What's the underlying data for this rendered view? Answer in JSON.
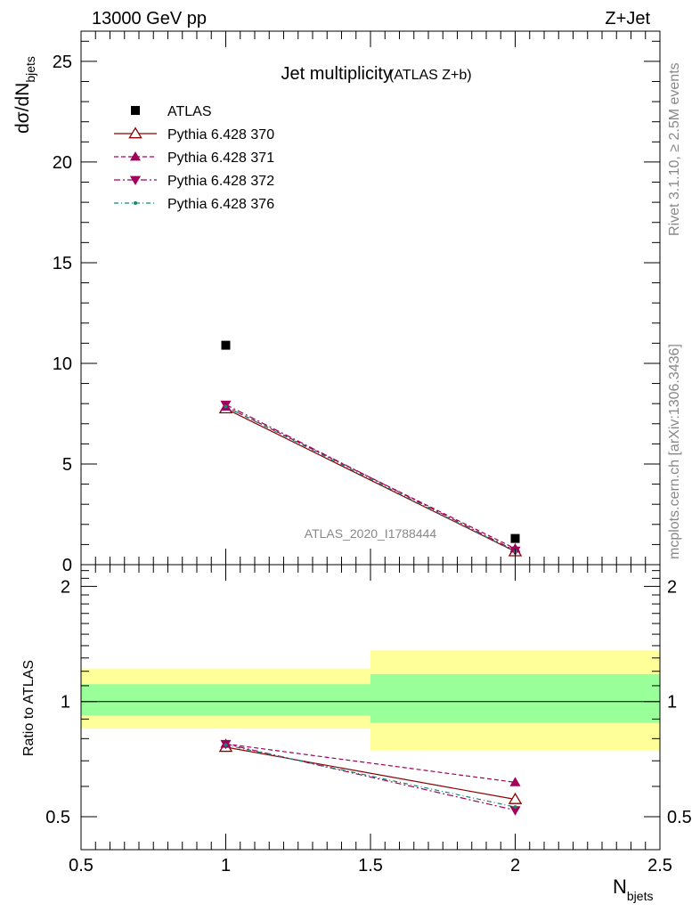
{
  "header": {
    "energy_label": "13000 GeV pp",
    "process_label": "Z+Jet"
  },
  "side_labels": {
    "rivet": "Rivet 3.1.10, ≥ 2.5M events",
    "mcplots": "mcplots.cern.ch [arXiv:1306.3436]"
  },
  "colors": {
    "atlas": "#000000",
    "pythia370": "#8b0000",
    "pythia371": "#a0005a",
    "pythia372": "#a0005a",
    "pythia376": "#0e8a6e",
    "band_outer": "#ffff99",
    "band_inner": "#99ff99"
  },
  "chart_data": [
    {
      "type": "scatter",
      "title": "Jet multiplicity",
      "title_suffix": "(ATLAS Z+b)",
      "watermark": "ATLAS_2020_I1788444",
      "ylabel_main": "dσ/dN",
      "ylabel_sub": "bjets",
      "xlabel_main": "N",
      "xlabel_sub": "bjets",
      "xlim": [
        0.5,
        2.5
      ],
      "ylim": [
        0,
        26.5
      ],
      "yticks": [
        0,
        5,
        10,
        15,
        20,
        25
      ],
      "x": [
        1,
        2
      ],
      "legend_position": "top-left",
      "series": [
        {
          "name": "ATLAS",
          "marker": "square",
          "line": "none",
          "values": [
            10.9,
            1.3
          ]
        },
        {
          "name": "Pythia 6.428 370",
          "marker": "open-triangle-up",
          "line": "solid",
          "values": [
            7.75,
            0.65
          ]
        },
        {
          "name": "Pythia 6.428 371",
          "marker": "filled-triangle-up",
          "line": "dashed",
          "values": [
            7.85,
            0.8
          ]
        },
        {
          "name": "Pythia 6.428 372",
          "marker": "filled-triangle-down",
          "line": "dashdot",
          "values": [
            7.95,
            0.7
          ]
        },
        {
          "name": "Pythia 6.428 376",
          "marker": "small-dot",
          "line": "dashdot",
          "values": [
            7.85,
            0.66
          ]
        }
      ]
    },
    {
      "type": "scatter",
      "ylabel": "Ratio to ATLAS",
      "xlim": [
        0.5,
        2.5
      ],
      "ylim": [
        0.41,
        2.28
      ],
      "yticks": [
        0.5,
        1,
        2
      ],
      "xticks": [
        0.5,
        1,
        1.5,
        2,
        2.5
      ],
      "x": [
        1,
        2
      ],
      "bands": [
        {
          "x": [
            0.5,
            1.5
          ],
          "outer": [
            0.85,
            1.22
          ],
          "inner": [
            0.92,
            1.11
          ]
        },
        {
          "x": [
            1.5,
            2.5
          ],
          "outer": [
            0.745,
            1.36
          ],
          "inner": [
            0.88,
            1.18
          ]
        }
      ],
      "series": [
        {
          "name": "Pythia 6.428 370",
          "values": [
            0.76,
            0.555
          ]
        },
        {
          "name": "Pythia 6.428 371",
          "values": [
            0.775,
            0.615
          ]
        },
        {
          "name": "Pythia 6.428 372",
          "values": [
            0.775,
            0.52
          ]
        },
        {
          "name": "Pythia 6.428 376",
          "values": [
            0.77,
            0.53
          ]
        }
      ]
    }
  ]
}
